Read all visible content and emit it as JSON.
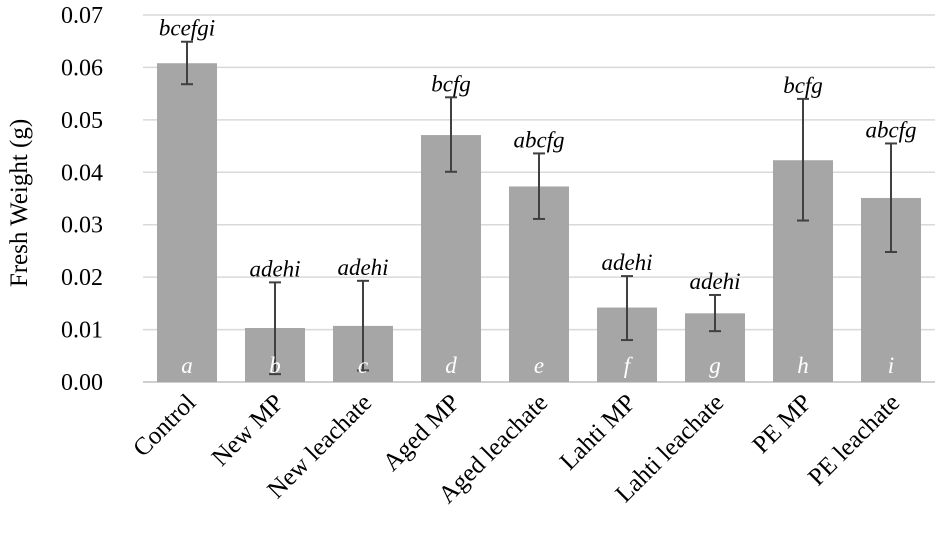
{
  "chart_data": {
    "type": "bar",
    "ylabel": "Fresh Weight (g)",
    "xlabel": "",
    "ylim": [
      0,
      0.07
    ],
    "yticks": [
      "0.00",
      "0.01",
      "0.02",
      "0.03",
      "0.04",
      "0.05",
      "0.06",
      "0.07"
    ],
    "grid": true,
    "colors": {
      "bar": "#a6a6a6",
      "error": "#404040",
      "grid": "#d9d9d9",
      "axis": "#bfbfbf"
    },
    "categories": [
      "Control",
      "New MP",
      "New leachate",
      "Aged MP",
      "Aged leachate",
      "Lahti MP",
      "Lahti leachate",
      "PE MP",
      "PE leachate"
    ],
    "values": [
      0.0608,
      0.0103,
      0.0107,
      0.0471,
      0.0373,
      0.0142,
      0.0131,
      0.0423,
      0.0351
    ],
    "error_low": [
      0.0568,
      0.0015,
      0.0022,
      0.0401,
      0.0311,
      0.008,
      0.0097,
      0.0308,
      0.0248
    ],
    "error_high": [
      0.0649,
      0.019,
      0.0193,
      0.0543,
      0.0436,
      0.0202,
      0.0166,
      0.054,
      0.0455
    ],
    "bar_letters": [
      "a",
      "b",
      "c",
      "d",
      "e",
      "f",
      "g",
      "h",
      "i"
    ],
    "significance_labels": [
      "bcefgi",
      "adehi",
      "adehi",
      "bcfg",
      "abcfg",
      "adehi",
      "adehi",
      "bcfg",
      "abcfg"
    ]
  }
}
